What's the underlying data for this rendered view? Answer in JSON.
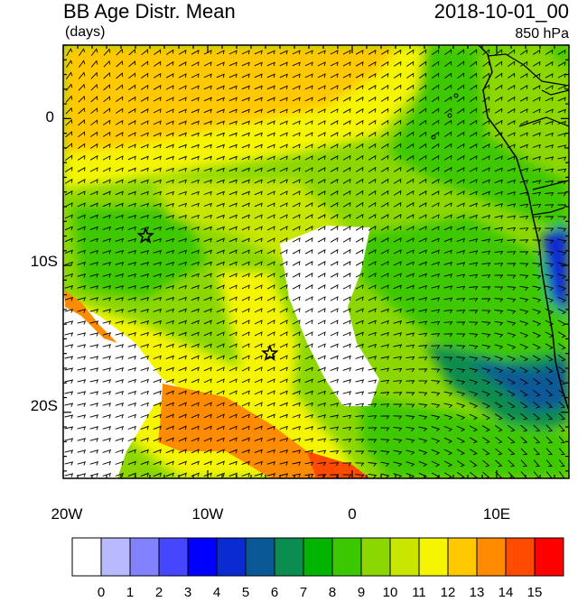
{
  "header": {
    "title": "BB Age Distr. Mean",
    "units": "(days)",
    "datetime": "2018-10-01_00",
    "level": "850 hPa"
  },
  "axes": {
    "lat_ticks": [
      "0",
      "10S",
      "20S"
    ],
    "lon_ticks": [
      "20W",
      "10W",
      "0",
      "10E"
    ]
  },
  "colorbar": {
    "labels": [
      "0",
      "1",
      "2",
      "3",
      "4",
      "5",
      "6",
      "7",
      "8",
      "9",
      "10",
      "11",
      "12",
      "13",
      "14",
      "15"
    ],
    "colors": [
      "#ffffff",
      "#b9b9ff",
      "#8282ff",
      "#4646ff",
      "#0000ff",
      "#0a2ad2",
      "#0b5896",
      "#0b8c50",
      "#00b400",
      "#3cc800",
      "#8cd700",
      "#c8e600",
      "#f5f500",
      "#ffc800",
      "#ff8c00",
      "#ff4b00",
      "#ff0000"
    ]
  },
  "map": {
    "markers": [
      {
        "name": "star-1",
        "lon": -14.3,
        "lat": -8.0
      },
      {
        "name": "star-2",
        "lon": -5.7,
        "lat": -16.0
      }
    ],
    "lon_range": [
      -20,
      15
    ],
    "lat_range": [
      -24.5,
      5
    ]
  }
}
